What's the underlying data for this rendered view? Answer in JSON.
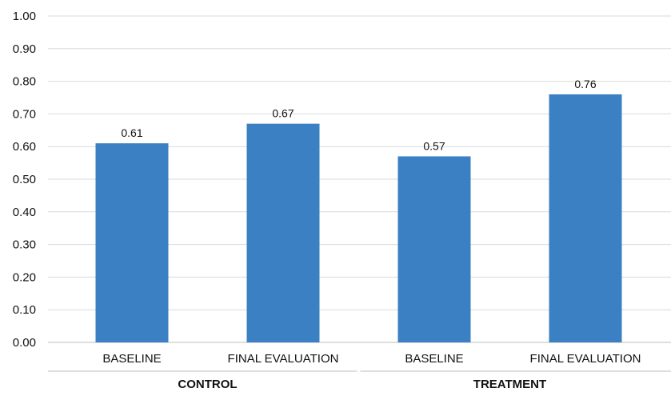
{
  "chart_data": {
    "type": "bar",
    "title": "",
    "xlabel": "",
    "ylabel": "",
    "ylim": [
      0,
      1.0
    ],
    "yticks": [
      "0.00",
      "0.10",
      "0.20",
      "0.30",
      "0.40",
      "0.50",
      "0.60",
      "0.70",
      "0.80",
      "0.90",
      "1.00"
    ],
    "grid": true,
    "bar_color": "#3b80c3",
    "groups": [
      {
        "label": "CONTROL",
        "bars": [
          {
            "category": "BASELINE",
            "value": 0.61,
            "label": "0.61"
          },
          {
            "category": "FINAL EVALUATION",
            "value": 0.67,
            "label": "0.67"
          }
        ]
      },
      {
        "label": "TREATMENT",
        "bars": [
          {
            "category": "BASELINE",
            "value": 0.57,
            "label": "0.57"
          },
          {
            "category": "FINAL EVALUATION",
            "value": 0.76,
            "label": "0.76"
          }
        ]
      }
    ]
  }
}
